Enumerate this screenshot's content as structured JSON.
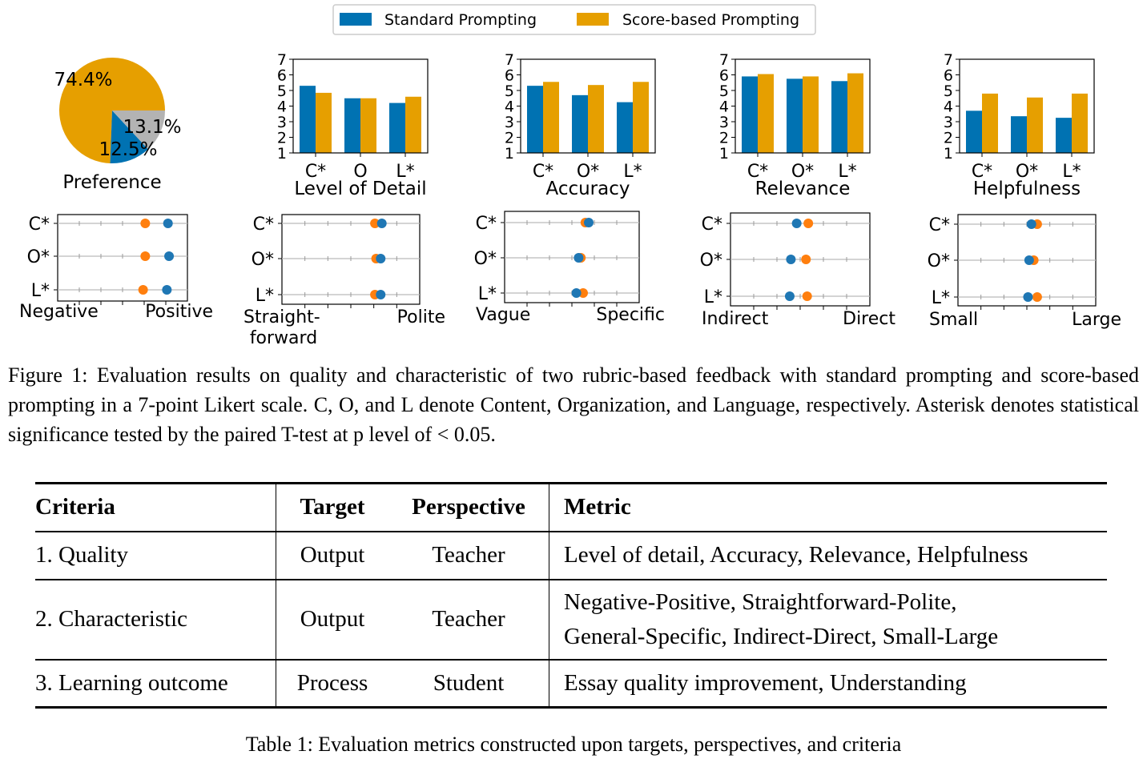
{
  "legend": [
    {
      "label": "Standard Prompting",
      "color": "#0072B2"
    },
    {
      "label": "Score-based Prompting",
      "color": "#E69F00"
    }
  ],
  "chart_data": [
    {
      "type": "pie",
      "title": "Preference",
      "slices": [
        {
          "label": "74.4%",
          "value": 74.4,
          "color": "#E69F00"
        },
        {
          "label": "12.5%",
          "value": 12.5,
          "color": "#0072B2"
        },
        {
          "label": "13.1%",
          "value": 13.1,
          "color": "#B3B3B3"
        }
      ]
    },
    {
      "type": "bar",
      "xlabel": "Level of Detail",
      "categories": [
        "C*",
        "O",
        "L*"
      ],
      "ylim": [
        1,
        7
      ],
      "yticks": [
        "1",
        "2",
        "3",
        "4",
        "5",
        "6",
        "7"
      ],
      "series": [
        {
          "name": "Standard Prompting",
          "values": [
            5.3,
            4.5,
            4.2
          ]
        },
        {
          "name": "Score-based Prompting",
          "values": [
            4.85,
            4.5,
            4.6
          ]
        }
      ]
    },
    {
      "type": "bar",
      "xlabel": "Accuracy",
      "categories": [
        "C*",
        "O*",
        "L*"
      ],
      "ylim": [
        1,
        7
      ],
      "yticks": [
        "1",
        "2",
        "3",
        "4",
        "5",
        "6",
        "7"
      ],
      "series": [
        {
          "name": "Standard Prompting",
          "values": [
            5.3,
            4.7,
            4.25
          ]
        },
        {
          "name": "Score-based Prompting",
          "values": [
            5.55,
            5.35,
            5.55
          ]
        }
      ]
    },
    {
      "type": "bar",
      "xlabel": "Relevance",
      "categories": [
        "C*",
        "O*",
        "L*"
      ],
      "ylim": [
        1,
        7
      ],
      "yticks": [
        "1",
        "2",
        "3",
        "4",
        "5",
        "6",
        "7"
      ],
      "series": [
        {
          "name": "Standard Prompting",
          "values": [
            5.9,
            5.75,
            5.6
          ]
        },
        {
          "name": "Score-based Prompting",
          "values": [
            6.05,
            5.9,
            6.1
          ]
        }
      ]
    },
    {
      "type": "bar",
      "xlabel": "Helpfulness",
      "categories": [
        "C*",
        "O*",
        "L*"
      ],
      "ylim": [
        1,
        7
      ],
      "yticks": [
        "1",
        "2",
        "3",
        "4",
        "5",
        "6",
        "7"
      ],
      "series": [
        {
          "name": "Standard Prompting",
          "values": [
            3.7,
            3.35,
            3.25
          ]
        },
        {
          "name": "Score-based Prompting",
          "values": [
            4.8,
            4.55,
            4.8
          ]
        }
      ]
    },
    {
      "type": "scatter",
      "left_label": "Negative",
      "right_label": "Positive",
      "categories": [
        "C*",
        "O*",
        "L*"
      ],
      "xlim": [
        1,
        7
      ],
      "series": [
        {
          "name": "Standard Prompting",
          "values": [
            6.1,
            6.15,
            6.05
          ]
        },
        {
          "name": "Score-based Prompting",
          "values": [
            5.05,
            5.05,
            4.95
          ]
        }
      ]
    },
    {
      "type": "scatter",
      "left_label": "Straight-",
      "left_label2": "forward",
      "right_label": "Polite",
      "categories": [
        "C*",
        "O*",
        "L*"
      ],
      "xlim": [
        1,
        7
      ],
      "series": [
        {
          "name": "Standard Prompting",
          "values": [
            5.35,
            5.3,
            5.3
          ]
        },
        {
          "name": "Score-based Prompting",
          "values": [
            5.05,
            5.1,
            5.05
          ]
        }
      ]
    },
    {
      "type": "scatter",
      "left_label": "Vague",
      "right_label": "Specific",
      "categories": [
        "C*",
        "O*",
        "L*"
      ],
      "xlim": [
        1,
        7
      ],
      "series": [
        {
          "name": "Standard Prompting",
          "values": [
            4.75,
            4.3,
            4.2
          ]
        },
        {
          "name": "Score-based Prompting",
          "values": [
            4.6,
            4.4,
            4.5
          ]
        }
      ]
    },
    {
      "type": "scatter",
      "left_label": "Indirect",
      "right_label": "Direct",
      "categories": [
        "C*",
        "O*",
        "L*"
      ],
      "xlim": [
        1,
        7
      ],
      "series": [
        {
          "name": "Standard Prompting",
          "values": [
            3.85,
            3.6,
            3.55
          ]
        },
        {
          "name": "Score-based Prompting",
          "values": [
            4.35,
            4.25,
            4.3
          ]
        }
      ]
    },
    {
      "type": "scatter",
      "left_label": "Small",
      "right_label": "Large",
      "categories": [
        "C*",
        "O*",
        "L*"
      ],
      "xlim": [
        1,
        7
      ],
      "series": [
        {
          "name": "Standard Prompting",
          "values": [
            4.2,
            4.1,
            4.05
          ]
        },
        {
          "name": "Score-based Prompting",
          "values": [
            4.45,
            4.3,
            4.45
          ]
        }
      ]
    }
  ],
  "figure_caption": "Figure 1: Evaluation results on quality and characteristic of two rubric-based feedback with standard prompting and score-based prompting in a 7-point Likert scale. C, O, and L denote Content, Organization, and Language, respectively. Asterisk denotes statistical significance tested by the paired T-test at p level of < 0.05.",
  "table": {
    "headers": {
      "criteria": "Criteria",
      "target": "Target",
      "perspective": "Perspective",
      "metric": "Metric"
    },
    "rows": [
      {
        "criteria": "1. Quality",
        "target": "Output",
        "perspective": "Teacher",
        "metric": "Level of detail, Accuracy, Relevance, Helpfulness",
        "metric2": ""
      },
      {
        "criteria": "2. Characteristic",
        "target": "Output",
        "perspective": "Teacher",
        "metric": "Negative-Positive, Straightforward-Polite,",
        "metric2": "General-Specific, Indirect-Direct, Small-Large"
      },
      {
        "criteria": "3. Learning outcome",
        "target": "Process",
        "perspective": "Student",
        "metric": "Essay quality improvement, Understanding",
        "metric2": ""
      }
    ]
  },
  "table_caption": "Table 1: Evaluation metrics constructed upon targets, perspectives, and criteria"
}
